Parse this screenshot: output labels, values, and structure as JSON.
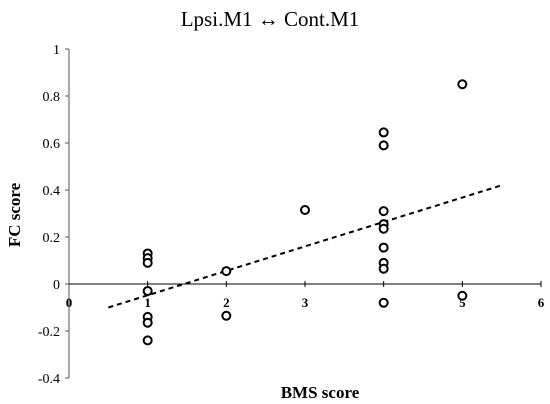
{
  "chart_data": {
    "type": "scatter",
    "title": "Lpsi.M1 ↔ Cont.M1",
    "xlabel": "BMS score",
    "ylabel": "FC score",
    "xlim": [
      0,
      6
    ],
    "ylim": [
      -0.4,
      1
    ],
    "xticks": [
      "0",
      "1",
      "2",
      "3",
      "4",
      "5",
      "6"
    ],
    "yticks": [
      "-0.4",
      "-0.2",
      "0",
      "0.2",
      "0.4",
      "0.6",
      "0.8",
      "1"
    ],
    "grid": false,
    "marker": "open-circle",
    "points": [
      {
        "x": 1,
        "y": 0.13
      },
      {
        "x": 1,
        "y": 0.11
      },
      {
        "x": 1,
        "y": 0.09
      },
      {
        "x": 1,
        "y": -0.03
      },
      {
        "x": 1,
        "y": -0.14
      },
      {
        "x": 1,
        "y": -0.165
      },
      {
        "x": 1,
        "y": -0.24
      },
      {
        "x": 2,
        "y": 0.055
      },
      {
        "x": 2,
        "y": -0.135
      },
      {
        "x": 3,
        "y": 0.315
      },
      {
        "x": 4,
        "y": 0.645
      },
      {
        "x": 4,
        "y": 0.59
      },
      {
        "x": 4,
        "y": 0.31
      },
      {
        "x": 4,
        "y": 0.255
      },
      {
        "x": 4,
        "y": 0.235
      },
      {
        "x": 4,
        "y": 0.155
      },
      {
        "x": 4,
        "y": 0.09
      },
      {
        "x": 4,
        "y": 0.065
      },
      {
        "x": 4,
        "y": -0.08
      },
      {
        "x": 5,
        "y": 0.85
      },
      {
        "x": 5,
        "y": -0.05
      }
    ],
    "trendline": {
      "style": "dashed",
      "x": [
        0.5,
        5.5
      ],
      "y": [
        -0.1,
        0.42
      ]
    }
  }
}
